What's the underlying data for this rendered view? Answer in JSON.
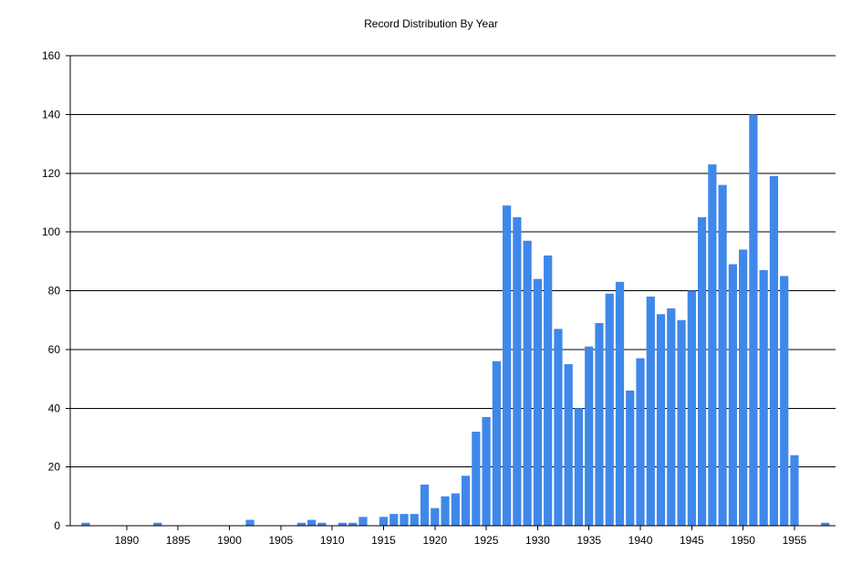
{
  "chart_data": {
    "type": "bar",
    "title": "Record Distribution By Year",
    "xlabel": "",
    "ylabel": "",
    "ylim": [
      0,
      160
    ],
    "xlim": [
      1884.5,
      1959
    ],
    "grid": true,
    "legend": "none",
    "y_ticks": [
      "0",
      "20",
      "40",
      "60",
      "80",
      "100",
      "120",
      "140",
      "160"
    ],
    "x_ticks": [
      "1890",
      "1895",
      "1900",
      "1905",
      "1910",
      "1915",
      "1920",
      "1925",
      "1930",
      "1935",
      "1940",
      "1945",
      "1950",
      "1955"
    ],
    "bar_color": "#3f88ea",
    "series": [
      {
        "x": [
          1886,
          1893,
          1902,
          1907,
          1908,
          1909,
          1911,
          1912,
          1913,
          1915,
          1916,
          1917,
          1918,
          1919,
          1920,
          1921,
          1922,
          1923,
          1924,
          1925,
          1926,
          1927,
          1928,
          1929,
          1930,
          1931,
          1932,
          1933,
          1934,
          1935,
          1936,
          1937,
          1938,
          1939,
          1940,
          1941,
          1942,
          1943,
          1944,
          1945,
          1946,
          1947,
          1948,
          1949,
          1950,
          1951,
          1952,
          1953,
          1954,
          1955,
          1958
        ],
        "values": [
          1,
          1,
          2,
          1,
          2,
          1,
          1,
          1,
          3,
          3,
          4,
          4,
          4,
          14,
          6,
          10,
          11,
          17,
          32,
          37,
          56,
          109,
          105,
          97,
          84,
          92,
          67,
          55,
          40,
          61,
          69,
          79,
          83,
          46,
          57,
          78,
          72,
          74,
          70,
          80,
          105,
          123,
          116,
          89,
          94,
          140,
          87,
          119,
          85,
          24,
          1
        ]
      }
    ]
  }
}
